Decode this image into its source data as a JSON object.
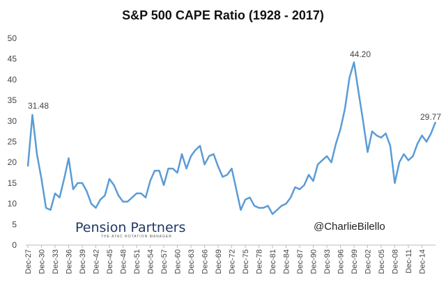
{
  "chart_data": {
    "type": "line",
    "title": "S&P 500 CAPE Ratio (1928 - 2017)",
    "categories": [
      "Dec-27",
      null,
      null,
      "Dec-30",
      null,
      null,
      "Dec-33",
      null,
      null,
      "Dec-36",
      null,
      null,
      "Dec-39",
      null,
      null,
      "Dec-42",
      null,
      null,
      "Dec-45",
      null,
      null,
      "Dec-48",
      null,
      null,
      "Dec-51",
      null,
      null,
      "Dec-54",
      null,
      null,
      "Dec-57",
      null,
      null,
      "Dec-60",
      null,
      null,
      "Dec-63",
      null,
      null,
      "Dec-66",
      null,
      null,
      "Dec-69",
      null,
      null,
      "Dec-72",
      null,
      null,
      "Dec-75",
      null,
      null,
      "Dec-78",
      null,
      null,
      "Dec-81",
      null,
      null,
      "Dec-84",
      null,
      null,
      "Dec-87",
      null,
      null,
      "Dec-90",
      null,
      null,
      "Dec-93",
      null,
      null,
      "Dec-96",
      null,
      null,
      "Dec-99",
      null,
      null,
      "Dec-02",
      null,
      null,
      "Dec-05",
      null,
      null,
      "Dec-08",
      null,
      null,
      "Dec-11",
      null,
      null,
      "Dec-14",
      null,
      null,
      null
    ],
    "series": [
      {
        "name": "CAPE",
        "color": "#5b9bd5",
        "values": [
          19.0,
          31.48,
          22.0,
          16.0,
          9.0,
          8.5,
          12.5,
          11.5,
          16.0,
          21.0,
          13.5,
          15.0,
          15.0,
          13.0,
          10.0,
          9.0,
          11.0,
          12.0,
          16.0,
          14.5,
          12.0,
          10.5,
          10.5,
          11.5,
          12.5,
          12.5,
          11.5,
          15.5,
          18.0,
          18.0,
          14.5,
          18.5,
          18.5,
          17.5,
          22.0,
          18.5,
          21.5,
          23.0,
          24.0,
          19.5,
          21.5,
          22.0,
          19.0,
          16.5,
          17.0,
          18.5,
          13.5,
          8.5,
          11.0,
          11.5,
          9.5,
          9.0,
          9.0,
          9.5,
          7.5,
          8.5,
          9.5,
          10.0,
          11.5,
          14.0,
          13.5,
          14.5,
          17.0,
          15.5,
          19.5,
          20.5,
          21.5,
          20.0,
          24.5,
          28.0,
          33.0,
          40.5,
          44.2,
          37.0,
          30.0,
          22.5,
          27.5,
          26.5,
          26.0,
          27.0,
          24.0,
          15.0,
          20.0,
          22.0,
          20.5,
          21.5,
          24.5,
          26.5,
          25.0,
          27.0,
          29.77
        ]
      }
    ],
    "annotations": [
      "31.48",
      "44.20",
      "29.77"
    ],
    "logo": {
      "name": "Pension Partners",
      "tagline": "THE ATAC ROTATION MANAGER"
    },
    "credit": "@CharlieBilello",
    "ylim": [
      0,
      50
    ],
    "yticks": [
      0,
      5,
      10,
      15,
      20,
      25,
      30,
      35,
      40,
      45,
      50
    ],
    "grid": false
  }
}
